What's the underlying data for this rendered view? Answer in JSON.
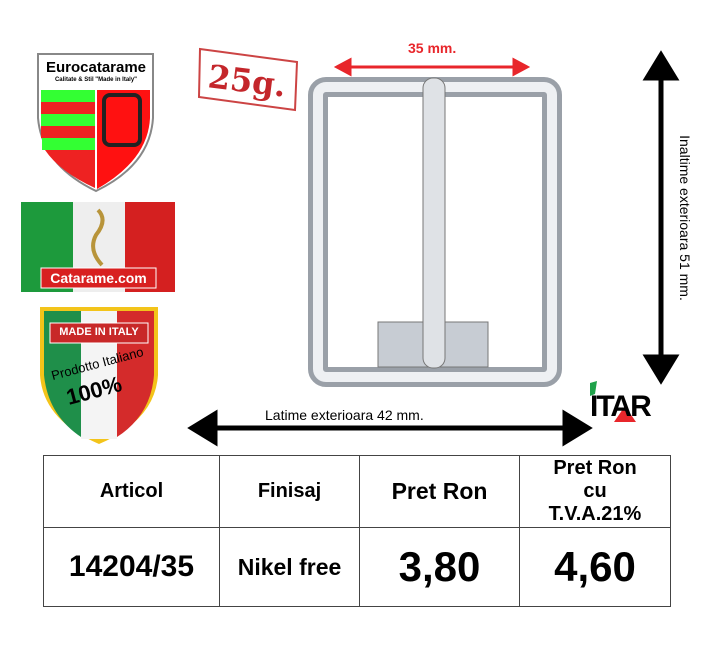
{
  "logos": {
    "eurocatarame_title": "Eurocatarame",
    "eurocatarame_tagline": "Calitate & Stil \"Made in Italy\"",
    "catarame_site": "Catarame.com",
    "made_in_italy": "MADE IN ITALY",
    "prodotto": "Prodotto Italiano",
    "percent": "100%",
    "itar": "ITAR"
  },
  "weight": "25g.",
  "dimensions": {
    "inner_width": "35 mm.",
    "outer_height": "Inaltime exterioara  51  mm.",
    "outer_width": "Latime exterioara  42 mm."
  },
  "table": {
    "headers": [
      "Articol",
      "Finisaj",
      "Pret Ron",
      "Pret Ron cu T.V.A.21%"
    ],
    "row": [
      "14204/35",
      "Nikel free",
      "3,80",
      "4,60"
    ]
  },
  "colors": {
    "red": "#e8262b",
    "green": "#1fa24a",
    "arrow": "#000000"
  }
}
